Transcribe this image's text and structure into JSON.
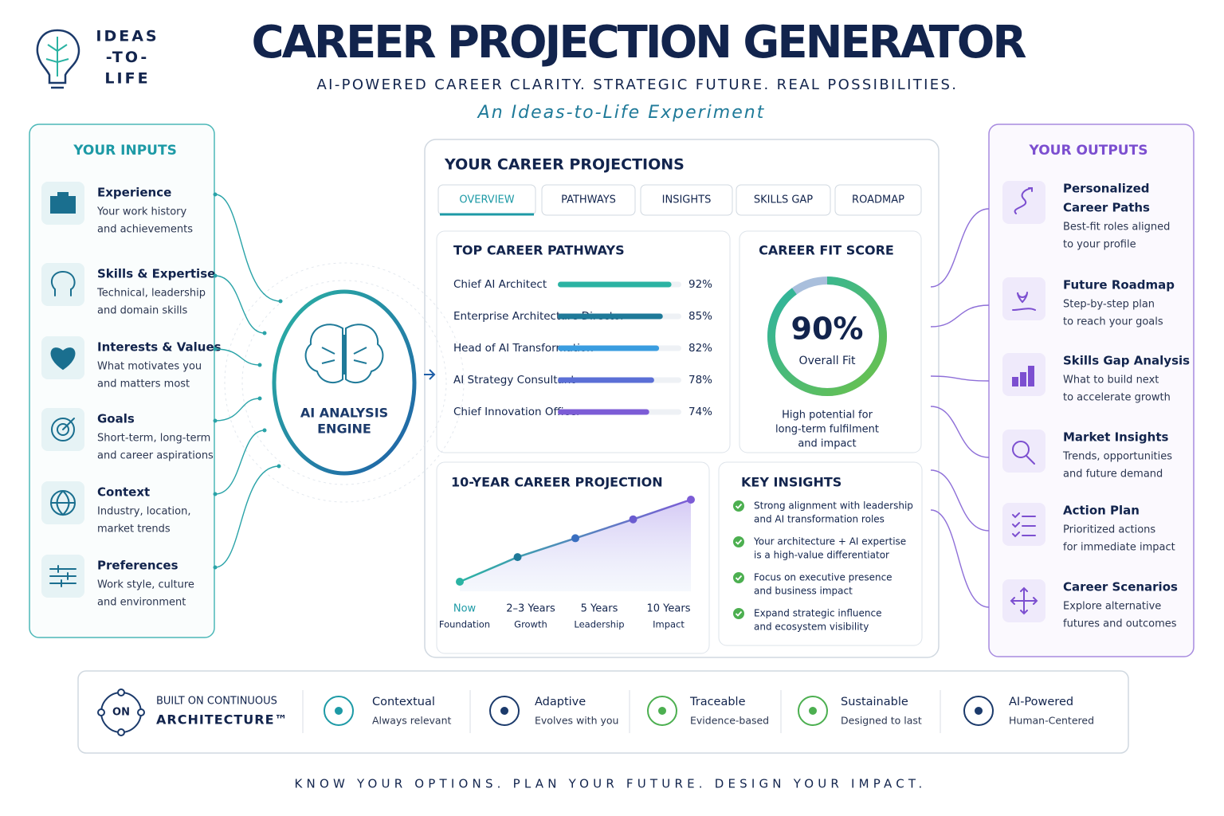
{
  "logo": {
    "lines": [
      "IDEAS",
      "-TO-",
      "LIFE"
    ]
  },
  "header": {
    "title": "CAREER PROJECTION GENERATOR",
    "subtitle": "AI-POWERED CAREER CLARITY. STRATEGIC FUTURE. REAL POSSIBILITIES.",
    "tagline": "An Ideas-to-Life Experiment"
  },
  "inputs": {
    "title": "YOUR INPUTS",
    "items": [
      {
        "title": "Experience",
        "desc": [
          "Your work history",
          "and achievements"
        ]
      },
      {
        "title": "Skills & Expertise",
        "desc": [
          "Technical, leadership",
          "and domain skills"
        ]
      },
      {
        "title": "Interests & Values",
        "desc": [
          "What motivates you",
          "and matters most"
        ]
      },
      {
        "title": "Goals",
        "desc": [
          "Short-term, long-term",
          "and career aspirations"
        ]
      },
      {
        "title": "Context",
        "desc": [
          "Industry, location,",
          "market trends"
        ]
      },
      {
        "title": "Preferences",
        "desc": [
          "Work style, culture",
          "and environment"
        ]
      }
    ]
  },
  "engine": {
    "label": [
      "AI ANALYSIS",
      "ENGINE"
    ]
  },
  "projections": {
    "title": "YOUR CAREER PROJECTIONS",
    "tabs": [
      "OVERVIEW",
      "PATHWAYS",
      "INSIGHTS",
      "SKILLS GAP",
      "ROADMAP"
    ],
    "active_tab": 0,
    "pathways": {
      "title": "TOP CAREER PATHWAYS",
      "items": [
        {
          "name": "Chief AI Architect",
          "value": 92,
          "value_label": "92%",
          "color": "#2bb3a3"
        },
        {
          "name": "Enterprise Architecture Director",
          "value": 85,
          "value_label": "85%",
          "color": "#1f7a99"
        },
        {
          "name": "Head of AI Transformation",
          "value": 82,
          "value_label": "82%",
          "color": "#3a9de0"
        },
        {
          "name": "AI Strategy Consultant",
          "value": 78,
          "value_label": "78%",
          "color": "#5b6fd6"
        },
        {
          "name": "Chief Innovation Officer",
          "value": 74,
          "value_label": "74%",
          "color": "#7c5cd6"
        }
      ]
    },
    "fit_score": {
      "title": "CAREER FIT SCORE",
      "value": 90,
      "value_label": "90%",
      "caption": "Overall Fit",
      "note": [
        "High potential for",
        "long-term fulfilment",
        "and impact"
      ]
    },
    "timeline": {
      "title": "10-YEAR CAREER PROJECTION",
      "stages": [
        {
          "label": "Now",
          "sub": "Foundation"
        },
        {
          "label": "2–3 Years",
          "sub": "Growth"
        },
        {
          "label": "5 Years",
          "sub": "Leadership"
        },
        {
          "label": "10 Years",
          "sub": "Impact"
        }
      ],
      "values": [
        0,
        30,
        53,
        76,
        100
      ],
      "ylim": [
        0,
        100
      ]
    },
    "insights": {
      "title": "KEY INSIGHTS",
      "items": [
        [
          "Strong alignment with leadership",
          "and AI transformation roles"
        ],
        [
          "Your architecture + AI expertise",
          "is a high-value differentiator"
        ],
        [
          "Focus on executive presence",
          "and business impact"
        ],
        [
          "Expand strategic influence",
          "and ecosystem visibility"
        ]
      ]
    }
  },
  "outputs": {
    "title": "YOUR OUTPUTS",
    "items": [
      {
        "title": [
          "Personalized",
          "Career Paths"
        ],
        "desc": [
          "Best-fit roles aligned",
          "to your profile"
        ]
      },
      {
        "title": [
          "Future Roadmap"
        ],
        "desc": [
          "Step-by-step plan",
          "to reach your goals"
        ]
      },
      {
        "title": [
          "Skills Gap Analysis"
        ],
        "desc": [
          "What to build next",
          "to accelerate growth"
        ]
      },
      {
        "title": [
          "Market Insights"
        ],
        "desc": [
          "Trends, opportunities",
          "and future demand"
        ]
      },
      {
        "title": [
          "Action Plan"
        ],
        "desc": [
          "Prioritized actions",
          "for immediate impact"
        ]
      },
      {
        "title": [
          "Career Scenarios"
        ],
        "desc": [
          "Explore alternative",
          "futures and outcomes"
        ]
      }
    ]
  },
  "footer": {
    "badge": "ON",
    "lines": [
      "BUILT ON CONTINUOUS",
      "ARCHITECTURE™"
    ],
    "features": [
      {
        "title": "Contextual",
        "desc": "Always relevant"
      },
      {
        "title": "Adaptive",
        "desc": "Evolves with you"
      },
      {
        "title": "Traceable",
        "desc": "Evidence-based"
      },
      {
        "title": "Sustainable",
        "desc": "Designed to last"
      },
      {
        "title": "AI-Powered",
        "desc": "Human-Centered"
      }
    ]
  },
  "closing": "KNOW YOUR OPTIONS. PLAN YOUR FUTURE. DESIGN YOUR IMPACT."
}
